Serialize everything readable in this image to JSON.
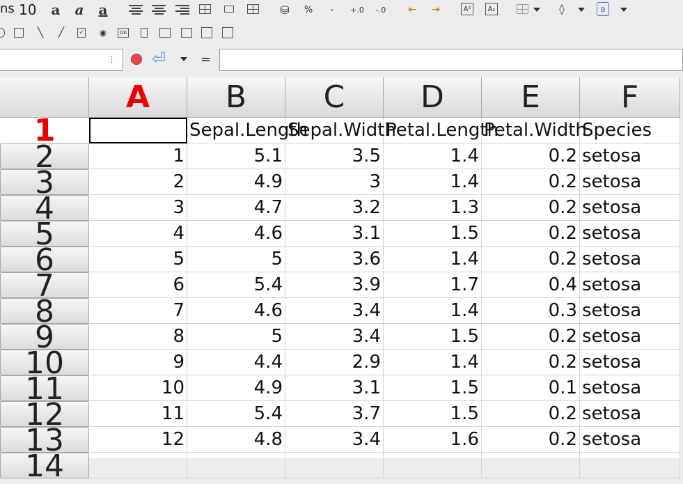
{
  "toolbar": {
    "font_name": "ns",
    "font_size": "10",
    "percent_label": "%",
    "decimal_label": "·"
  },
  "formula_bar": {
    "name_box": "",
    "equals_label": "=",
    "formula": ""
  },
  "columns": [
    "A",
    "B",
    "C",
    "D",
    "E",
    "F"
  ],
  "active_column": "A",
  "rows": [
    {
      "n": "1",
      "cells": [
        "",
        "Sepal.Length",
        "Sepal.Width",
        "Petal.Length",
        "Petal.Width",
        "Species"
      ]
    },
    {
      "n": "2",
      "cells": [
        "1",
        "5.1",
        "3.5",
        "1.4",
        "0.2",
        "setosa"
      ]
    },
    {
      "n": "3",
      "cells": [
        "2",
        "4.9",
        "3",
        "1.4",
        "0.2",
        "setosa"
      ]
    },
    {
      "n": "4",
      "cells": [
        "3",
        "4.7",
        "3.2",
        "1.3",
        "0.2",
        "setosa"
      ]
    },
    {
      "n": "5",
      "cells": [
        "4",
        "4.6",
        "3.1",
        "1.5",
        "0.2",
        "setosa"
      ]
    },
    {
      "n": "6",
      "cells": [
        "5",
        "5",
        "3.6",
        "1.4",
        "0.2",
        "setosa"
      ]
    },
    {
      "n": "7",
      "cells": [
        "6",
        "5.4",
        "3.9",
        "1.7",
        "0.4",
        "setosa"
      ]
    },
    {
      "n": "8",
      "cells": [
        "7",
        "4.6",
        "3.4",
        "1.4",
        "0.3",
        "setosa"
      ]
    },
    {
      "n": "9",
      "cells": [
        "8",
        "5",
        "3.4",
        "1.5",
        "0.2",
        "setosa"
      ]
    },
    {
      "n": "10",
      "cells": [
        "9",
        "4.4",
        "2.9",
        "1.4",
        "0.2",
        "setosa"
      ]
    },
    {
      "n": "11",
      "cells": [
        "10",
        "4.9",
        "3.1",
        "1.5",
        "0.1",
        "setosa"
      ]
    },
    {
      "n": "12",
      "cells": [
        "11",
        "5.4",
        "3.7",
        "1.5",
        "0.2",
        "setosa"
      ]
    },
    {
      "n": "13",
      "cells": [
        "12",
        "4.8",
        "3.4",
        "1.6",
        "0.2",
        "setosa"
      ]
    },
    {
      "n": "14",
      "cells": [
        "",
        "",
        "",
        "",
        "",
        ""
      ]
    }
  ],
  "active_row": "1",
  "colors": {
    "active_header": "#e00000",
    "record_button": "#e04c4c",
    "accept_icon": "#6aa0d8"
  }
}
